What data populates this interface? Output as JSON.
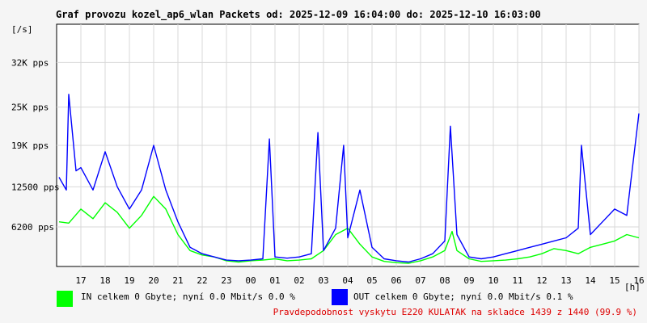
{
  "chart_data": {
    "type": "line",
    "title": "Graf provozu kozel_ap6_wlan Packets od: 2025-12-09 16:04:00 do: 2025-12-10 16:03:00",
    "ylabel": "[/s]",
    "xunit": "[h]",
    "ylim": [
      0,
      38000
    ],
    "y_ticks": [
      {
        "value": 6200,
        "label": "6200 pps"
      },
      {
        "value": 12500,
        "label": "12500 pps"
      },
      {
        "value": 19000,
        "label": "19K pps"
      },
      {
        "value": 25000,
        "label": "25K pps"
      },
      {
        "value": 32000,
        "label": "32K pps"
      }
    ],
    "x_ticks": [
      "17",
      "18",
      "19",
      "20",
      "21",
      "22",
      "23",
      "00",
      "01",
      "02",
      "03",
      "04",
      "05",
      "06",
      "07",
      "08",
      "09",
      "10",
      "11",
      "12",
      "13",
      "14",
      "15",
      "16"
    ],
    "grid": true,
    "series": [
      {
        "name": "IN",
        "color": "#00ff00",
        "x": [
          16.1,
          16.5,
          17.0,
          17.5,
          18.0,
          18.5,
          19.0,
          19.5,
          20.0,
          20.5,
          21.0,
          21.5,
          22.0,
          22.5,
          23.0,
          23.5,
          24.0,
          24.5,
          25.0,
          25.5,
          26.0,
          26.5,
          27.0,
          27.5,
          28.0,
          28.5,
          29.0,
          29.5,
          30.0,
          30.5,
          31.0,
          31.5,
          32.0,
          32.3,
          32.5,
          33.0,
          33.5,
          34.0,
          34.5,
          35.0,
          35.5,
          36.0,
          36.5,
          37.0,
          37.5,
          38.0,
          38.5,
          39.0,
          39.5,
          40.0
        ],
        "values": [
          7000,
          6800,
          9000,
          7500,
          10000,
          8500,
          6000,
          8000,
          11000,
          9000,
          5000,
          2500,
          1800,
          1500,
          900,
          700,
          900,
          1000,
          1200,
          900,
          1000,
          1200,
          2500,
          5000,
          6000,
          3500,
          1500,
          800,
          600,
          500,
          900,
          1500,
          2500,
          5500,
          2500,
          1200,
          800,
          900,
          1000,
          1200,
          1500,
          2000,
          2800,
          2500,
          2000,
          3000,
          3500,
          4000,
          5000,
          4500
        ]
      },
      {
        "name": "OUT",
        "color": "#0000ff",
        "x": [
          16.1,
          16.4,
          16.5,
          16.8,
          17.0,
          17.5,
          18.0,
          18.5,
          19.0,
          19.5,
          20.0,
          20.5,
          21.0,
          21.5,
          22.0,
          22.5,
          23.0,
          23.5,
          24.0,
          24.5,
          24.77,
          25.0,
          25.5,
          26.0,
          26.5,
          26.77,
          27.0,
          27.5,
          27.83,
          28.0,
          28.5,
          29.0,
          29.5,
          30.0,
          30.5,
          31.0,
          31.5,
          32.0,
          32.23,
          32.5,
          33.0,
          33.5,
          34.0,
          34.5,
          35.0,
          35.5,
          36.0,
          36.5,
          37.0,
          37.5,
          37.63,
          38.0,
          38.5,
          39.0,
          39.5,
          40.0
        ],
        "values": [
          14000,
          12000,
          27000,
          15000,
          15500,
          12000,
          18000,
          12500,
          9000,
          12000,
          19000,
          12000,
          7000,
          3000,
          2000,
          1500,
          1000,
          900,
          1000,
          1200,
          20000,
          1500,
          1300,
          1500,
          2000,
          21000,
          2500,
          6000,
          19000,
          4500,
          12000,
          3000,
          1200,
          900,
          700,
          1200,
          2000,
          4000,
          22000,
          5000,
          1500,
          1200,
          1500,
          2000,
          2500,
          3000,
          3500,
          4000,
          4500,
          6000,
          19000,
          5000,
          7000,
          9000,
          8000,
          24000
        ]
      }
    ],
    "legend": [
      {
        "series": "IN",
        "text": "IN celkem 0 Gbyte; nyní   0.0 Mbit/s 0.0 %"
      },
      {
        "series": "OUT",
        "text": "OUT celkem 0 Gbyte; nyní   0.0 Mbit/s 0.1 %"
      }
    ],
    "legend_placement": "bottom"
  },
  "footnote": {
    "text": "Pravdepodobnost vyskytu E220 KULATAK na skladce 1439 z 1440 (99.9 %)",
    "color": "#dd0000"
  }
}
